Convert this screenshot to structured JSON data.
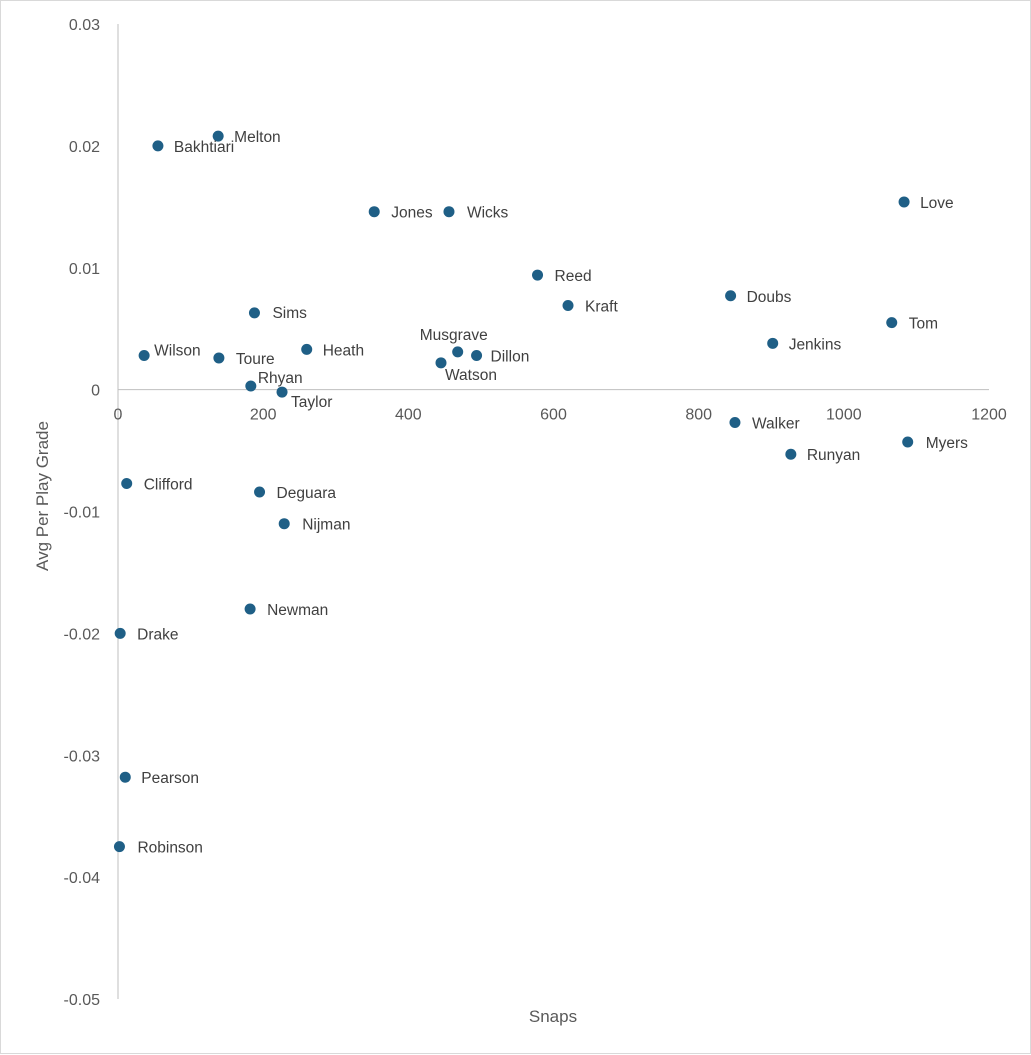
{
  "chart_data": {
    "type": "scatter",
    "xlabel": "Snaps",
    "ylabel": "Avg Per Play Grade",
    "xlim": [
      0,
      1200
    ],
    "ylim": [
      -0.05,
      0.03
    ],
    "x_ticks": [
      0,
      200,
      400,
      600,
      800,
      1000,
      1200
    ],
    "x_tick_labels": [
      "0",
      "200",
      "400",
      "600",
      "800",
      "1000",
      "1200"
    ],
    "y_ticks": [
      0.03,
      0.02,
      0.01,
      0,
      -0.01,
      -0.02,
      -0.03,
      -0.04,
      -0.05
    ],
    "y_tick_labels": [
      "0.03",
      "0.02",
      "0.01",
      "0",
      "-0.01",
      "-0.02",
      "-0.03",
      "-0.04",
      "-0.05"
    ],
    "gridlines": false,
    "marker_color": "#1f5f86",
    "points": [
      {
        "name": "Melton",
        "x": 138,
        "y": 0.0208
      },
      {
        "name": "Bakhtiari",
        "x": 55,
        "y": 0.02
      },
      {
        "name": "Jones",
        "x": 353,
        "y": 0.0146
      },
      {
        "name": "Wicks",
        "x": 456,
        "y": 0.0146
      },
      {
        "name": "Love",
        "x": 1083,
        "y": 0.0154
      },
      {
        "name": "Reed",
        "x": 578,
        "y": 0.0094
      },
      {
        "name": "Kraft",
        "x": 620,
        "y": 0.0069
      },
      {
        "name": "Doubs",
        "x": 844,
        "y": 0.0077
      },
      {
        "name": "Sims",
        "x": 188,
        "y": 0.0063
      },
      {
        "name": "Tom",
        "x": 1066,
        "y": 0.0055
      },
      {
        "name": "Jenkins",
        "x": 902,
        "y": 0.0038
      },
      {
        "name": "Musgrave",
        "x": 468,
        "y": 0.0031
      },
      {
        "name": "Dillon",
        "x": 494,
        "y": 0.0028
      },
      {
        "name": "Watson",
        "x": 445,
        "y": 0.0022
      },
      {
        "name": "Wilson",
        "x": 36,
        "y": 0.0028
      },
      {
        "name": "Toure",
        "x": 139,
        "y": 0.0026
      },
      {
        "name": "Heath",
        "x": 260,
        "y": 0.0033
      },
      {
        "name": "Rhyan",
        "x": 183,
        "y": 0.0003
      },
      {
        "name": "Taylor",
        "x": 226,
        "y": -0.0002
      },
      {
        "name": "Walker",
        "x": 850,
        "y": -0.0027
      },
      {
        "name": "Myers",
        "x": 1088,
        "y": -0.0043
      },
      {
        "name": "Runyan",
        "x": 927,
        "y": -0.0053
      },
      {
        "name": "Clifford",
        "x": 12,
        "y": -0.0077
      },
      {
        "name": "Deguara",
        "x": 195,
        "y": -0.0084
      },
      {
        "name": "Nijman",
        "x": 229,
        "y": -0.011
      },
      {
        "name": "Newman",
        "x": 182,
        "y": -0.018
      },
      {
        "name": "Drake",
        "x": 3,
        "y": -0.02
      },
      {
        "name": "Pearson",
        "x": 10,
        "y": -0.0318
      },
      {
        "name": "Robinson",
        "x": 2,
        "y": -0.0375
      }
    ]
  }
}
